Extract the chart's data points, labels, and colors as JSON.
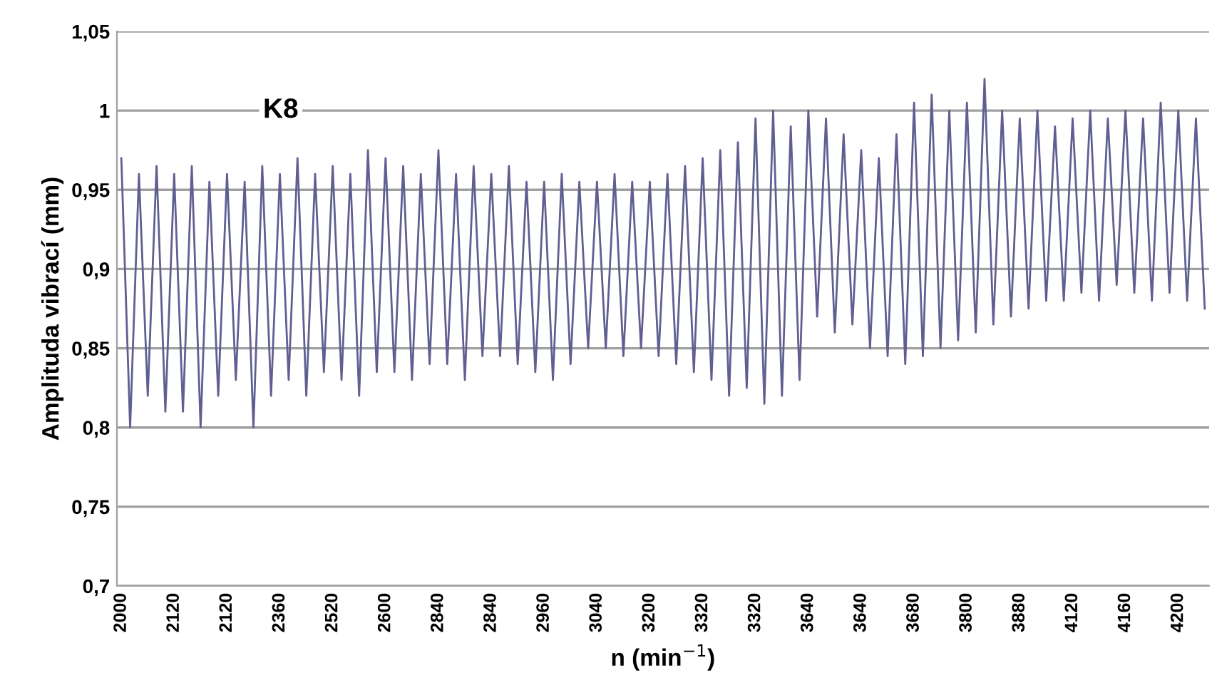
{
  "chart_data": {
    "type": "line",
    "xlabel": "n (min$^{−1}$)",
    "ylabel": "Amplituda vibrací (mm)",
    "annotations": [
      "K8"
    ],
    "categories": [
      "2000",
      null,
      null,
      null,
      null,
      null,
      "2120",
      null,
      null,
      null,
      null,
      null,
      "2120",
      null,
      null,
      null,
      null,
      null,
      "2360",
      null,
      null,
      null,
      null,
      null,
      "2520",
      null,
      null,
      null,
      null,
      null,
      "2600",
      null,
      null,
      null,
      null,
      null,
      "2840",
      null,
      null,
      null,
      null,
      null,
      "2840",
      null,
      null,
      null,
      null,
      null,
      "2960",
      null,
      null,
      null,
      null,
      null,
      "3040",
      null,
      null,
      null,
      null,
      null,
      "3200",
      null,
      null,
      null,
      null,
      null,
      "3320",
      null,
      null,
      null,
      null,
      null,
      "3320",
      null,
      null,
      null,
      null,
      null,
      "3640",
      null,
      null,
      null,
      null,
      null,
      "3640",
      null,
      null,
      null,
      null,
      null,
      "3680",
      null,
      null,
      null,
      null,
      null,
      "3800",
      null,
      null,
      null,
      null,
      null,
      "3880",
      null,
      null,
      null,
      null,
      null,
      "4120",
      null,
      null,
      null,
      null,
      null,
      "4160",
      null,
      null,
      null,
      null,
      null,
      "4200",
      null,
      null,
      null
    ],
    "series": [
      {
        "color": "#5f5f92",
        "values": [
          0.97,
          0.8,
          0.96,
          0.82,
          0.965,
          0.81,
          0.96,
          0.81,
          0.965,
          0.8,
          0.955,
          0.82,
          0.96,
          0.83,
          0.955,
          0.8,
          0.965,
          0.82,
          0.96,
          0.83,
          0.97,
          0.82,
          0.96,
          0.835,
          0.965,
          0.83,
          0.96,
          0.82,
          0.975,
          0.835,
          0.97,
          0.835,
          0.965,
          0.83,
          0.96,
          0.84,
          0.975,
          0.84,
          0.96,
          0.83,
          0.965,
          0.845,
          0.96,
          0.845,
          0.965,
          0.84,
          0.955,
          0.835,
          0.955,
          0.83,
          0.96,
          0.84,
          0.955,
          0.85,
          0.955,
          0.85,
          0.96,
          0.845,
          0.955,
          0.85,
          0.955,
          0.845,
          0.96,
          0.84,
          0.965,
          0.835,
          0.97,
          0.83,
          0.975,
          0.82,
          0.98,
          0.825,
          0.995,
          0.815,
          1.0,
          0.82,
          0.99,
          0.83,
          1.0,
          0.87,
          0.995,
          0.86,
          0.985,
          0.865,
          0.975,
          0.85,
          0.97,
          0.845,
          0.985,
          0.84,
          1.005,
          0.845,
          1.01,
          0.85,
          1.0,
          0.855,
          1.005,
          0.86,
          1.02,
          0.865,
          1.0,
          0.87,
          0.995,
          0.875,
          1.0,
          0.88,
          0.99,
          0.88,
          0.995,
          0.885,
          1.0,
          0.88,
          0.995,
          0.89,
          1.0,
          0.885,
          0.995,
          0.88,
          1.005,
          0.885,
          1.0,
          0.88,
          0.995,
          0.875
        ]
      }
    ],
    "ylim": [
      0.7,
      1.05
    ],
    "yticks": [
      {
        "value": 0.7,
        "label": "0,7"
      },
      {
        "value": 0.75,
        "label": "0,75"
      },
      {
        "value": 0.8,
        "label": "0,8"
      },
      {
        "value": 0.85,
        "label": "0,85"
      },
      {
        "value": 0.9,
        "label": "0,9"
      },
      {
        "value": 0.95,
        "label": "0,95"
      },
      {
        "value": 1.0,
        "label": "1"
      },
      {
        "value": 1.05,
        "label": "1,05"
      }
    ],
    "grid": "y",
    "marker": "none",
    "line_style": "solid"
  }
}
